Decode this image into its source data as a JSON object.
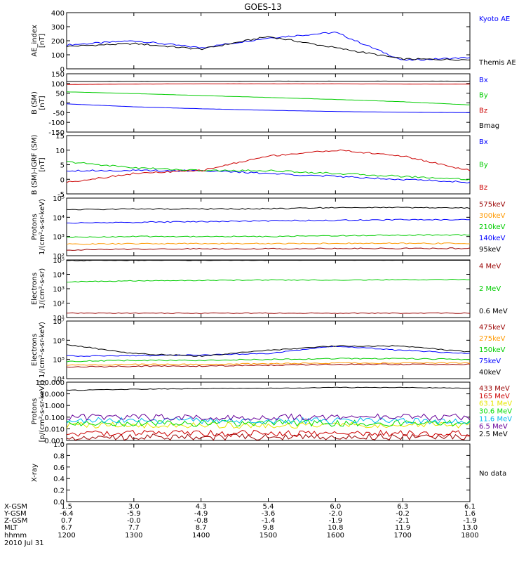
{
  "title": "GOES-13",
  "date": "2010 Jul 31",
  "colors": {
    "black": "#000000",
    "blue": "#0000ff",
    "green": "#00cc00",
    "red": "#cc0000",
    "darkred": "#990000",
    "orange": "#ff9900",
    "yellow": "#e6e600",
    "cyan": "#00bbee",
    "purple": "#660099",
    "lime": "#00dd00"
  },
  "panels": [
    {
      "id": "ae",
      "ylabel": [
        "AE_index",
        "[nT]"
      ],
      "yticks": [
        "400",
        "300",
        "200",
        "100",
        "0"
      ],
      "legend": [
        {
          "text": "Kyoto AE",
          "color": "#0000ff"
        },
        {
          "text": "Themis AE",
          "color": "#000000"
        }
      ]
    },
    {
      "id": "bsm",
      "ylabel": [
        "B (SM)",
        "[nT]"
      ],
      "yticks": [
        "150",
        "100",
        "50",
        "0",
        "-50",
        "-100",
        "-150"
      ],
      "legend": [
        {
          "text": "Bx",
          "color": "#0000ff"
        },
        {
          "text": "By",
          "color": "#00cc00"
        },
        {
          "text": "Bz",
          "color": "#cc0000"
        },
        {
          "text": "Bmag",
          "color": "#000000"
        }
      ]
    },
    {
      "id": "bigrf",
      "ylabel": [
        "B (SM)-IGRF (SM)",
        "[nT]"
      ],
      "yticks": [
        "15",
        "10",
        "5",
        "0",
        "-5"
      ],
      "legend": [
        {
          "text": "Bx",
          "color": "#0000ff"
        },
        {
          "text": "By",
          "color": "#00cc00"
        },
        {
          "text": "Bz",
          "color": "#cc0000"
        }
      ]
    },
    {
      "id": "protons1",
      "ylabel": [
        "Protons",
        "1/(cm²-s-sr-keV)"
      ],
      "yticks": [
        "10⁵",
        "10⁴",
        "10³",
        "10²"
      ],
      "legend": [
        {
          "text": "575keV",
          "color": "#990000"
        },
        {
          "text": "300keV",
          "color": "#ff9900"
        },
        {
          "text": "210keV",
          "color": "#00cc00"
        },
        {
          "text": "140keV",
          "color": "#0000ff"
        },
        {
          "text": "95keV",
          "color": "#000000"
        }
      ]
    },
    {
      "id": "electrons1",
      "ylabel": [
        "Electrons",
        "1/(cm²-s-sr)"
      ],
      "yticks": [
        "10⁵",
        "10⁴",
        "10³",
        "10²",
        "10¹"
      ],
      "legend": [
        {
          "text": "4 MeV",
          "color": "#990000"
        },
        {
          "text": "2 MeV",
          "color": "#00cc00"
        },
        {
          "text": "0.6 MeV",
          "color": "#000000"
        }
      ]
    },
    {
      "id": "electrons2",
      "ylabel": [
        "Electrons",
        "1/(cm²-s-sr-keV)"
      ],
      "yticks": [
        "10⁷",
        "10⁶",
        "10⁵",
        "10⁴"
      ],
      "legend": [
        {
          "text": "475keV",
          "color": "#990000"
        },
        {
          "text": "275keV",
          "color": "#ff9900"
        },
        {
          "text": "150keV",
          "color": "#00cc00"
        },
        {
          "text": "75keV",
          "color": "#0000ff"
        },
        {
          "text": "40keV",
          "color": "#000000"
        }
      ]
    },
    {
      "id": "protons2",
      "ylabel": [
        "Protons",
        "[p/(cm²-s-sr-keV)]"
      ],
      "yticks": [
        "100.000",
        "10.000",
        "1.000",
        "0.100",
        "0.010",
        "0.001"
      ],
      "legend": [
        {
          "text": "433 MeV",
          "color": "#990000"
        },
        {
          "text": "165 MeV",
          "color": "#cc0000"
        },
        {
          "text": "63.1 MeV",
          "color": "#e6e600"
        },
        {
          "text": "30.6 MeV",
          "color": "#00dd00"
        },
        {
          "text": "11.6 MeV",
          "color": "#00bbee"
        },
        {
          "text": "6.5 MeV",
          "color": "#660099"
        },
        {
          "text": "2.5 MeV",
          "color": "#000000"
        }
      ]
    },
    {
      "id": "xray",
      "ylabel": [
        "X-ray",
        ""
      ],
      "yticks": [
        "1.0",
        "0.8",
        "0.6",
        "0.4",
        "0.2",
        "0.0"
      ],
      "legend": [
        {
          "text": "No data",
          "color": "#000000"
        }
      ]
    }
  ],
  "footer": {
    "rows": [
      {
        "label": "X-GSM",
        "values": [
          "1.5",
          "3.0",
          "4.3",
          "5.4",
          "6.0",
          "6.3",
          "6.1"
        ]
      },
      {
        "label": "Y-GSM",
        "values": [
          "-6.4",
          "-5.9",
          "-4.9",
          "-3.6",
          "-2.0",
          "-0.2",
          "1.6"
        ]
      },
      {
        "label": "Z-GSM",
        "values": [
          "0.7",
          "-0.0",
          "-0.8",
          "-1.4",
          "-1.9",
          "-2.1",
          "-1.9"
        ]
      },
      {
        "label": "MLT",
        "values": [
          "6.7",
          "7.7",
          "8.7",
          "9.8",
          "10.8",
          "11.9",
          "13.0"
        ]
      },
      {
        "label": "hhmm",
        "values": [
          "1200",
          "1300",
          "1400",
          "1500",
          "1600",
          "1700",
          "1800"
        ]
      }
    ]
  },
  "chart_data": [
    {
      "type": "line",
      "title": "GOES-13",
      "ylabel": "AE_index [nT]",
      "ylim": [
        0,
        400
      ],
      "x": [
        "1200",
        "1300",
        "1400",
        "1500",
        "1600",
        "1700",
        "1800"
      ],
      "series": [
        {
          "name": "Kyoto AE",
          "color": "#0000ff",
          "values": [
            170,
            200,
            150,
            220,
            260,
            60,
            80
          ]
        },
        {
          "name": "Themis AE",
          "color": "#000000",
          "values": [
            160,
            180,
            140,
            230,
            150,
            70,
            65
          ]
        }
      ]
    },
    {
      "type": "line",
      "ylabel": "B (SM) [nT]",
      "ylim": [
        -150,
        150
      ],
      "x": [
        "1200",
        "1300",
        "1400",
        "1500",
        "1600",
        "1700",
        "1800"
      ],
      "series": [
        {
          "name": "Bx",
          "color": "#0000ff",
          "values": [
            -5,
            -20,
            -30,
            -38,
            -44,
            -48,
            -50
          ]
        },
        {
          "name": "By",
          "color": "#00cc00",
          "values": [
            57,
            48,
            38,
            28,
            18,
            6,
            -10
          ]
        },
        {
          "name": "Bz",
          "color": "#cc0000",
          "values": [
            95,
            97,
            98,
            98,
            98,
            97,
            97
          ]
        },
        {
          "name": "Bmag",
          "color": "#000000",
          "values": [
            110,
            111,
            111,
            112,
            112,
            112,
            112
          ]
        }
      ]
    },
    {
      "type": "line",
      "ylabel": "B (SM)-IGRF (SM) [nT]",
      "ylim": [
        -5,
        15
      ],
      "x": [
        "1200",
        "1300",
        "1400",
        "1500",
        "1600",
        "1700",
        "1800"
      ],
      "series": [
        {
          "name": "Bx",
          "color": "#0000ff",
          "values": [
            3,
            3,
            3,
            2,
            1,
            0,
            -1
          ]
        },
        {
          "name": "By",
          "color": "#00cc00",
          "values": [
            6,
            4,
            3,
            3,
            2,
            1,
            0
          ]
        },
        {
          "name": "Bz",
          "color": "#cc0000",
          "values": [
            -1,
            2,
            3,
            8,
            10,
            8,
            3
          ]
        }
      ]
    },
    {
      "type": "line",
      "ylabel": "Protons 1/(cm²-s-sr-keV)",
      "ylim": [
        100,
        100000
      ],
      "log": true,
      "x": [
        "1200",
        "1300",
        "1400",
        "1500",
        "1600",
        "1700",
        "1800"
      ],
      "series": [
        {
          "name": "575keV",
          "color": "#990000",
          "values": [
            200,
            220,
            230,
            230,
            240,
            240,
            240
          ]
        },
        {
          "name": "300keV",
          "color": "#ff9900",
          "values": [
            400,
            420,
            430,
            430,
            440,
            440,
            440
          ]
        },
        {
          "name": "210keV",
          "color": "#00cc00",
          "values": [
            900,
            1000,
            1000,
            1000,
            1100,
            1200,
            1200
          ]
        },
        {
          "name": "140keV",
          "color": "#0000ff",
          "values": [
            5000,
            5500,
            6000,
            6500,
            7000,
            7500,
            7500
          ]
        },
        {
          "name": "95keV",
          "color": "#000000",
          "values": [
            25000,
            27000,
            27000,
            28000,
            32000,
            32000,
            30000
          ]
        }
      ]
    },
    {
      "type": "line",
      "ylabel": "Electrons 1/(cm²-s-sr)",
      "ylim": [
        10,
        100000
      ],
      "log": true,
      "x": [
        "1200",
        "1300",
        "1400",
        "1500",
        "1600",
        "1700",
        "1800"
      ],
      "series": [
        {
          "name": "4 MeV",
          "color": "#990000",
          "values": [
            20,
            20,
            20,
            20,
            20,
            20,
            20
          ]
        },
        {
          "name": "2 MeV",
          "color": "#00cc00",
          "values": [
            3000,
            3500,
            3800,
            4000,
            4000,
            4200,
            4300
          ]
        },
        {
          "name": "0.6 MeV",
          "color": "#000000",
          "values": [
            90000,
            95000,
            95000,
            98000,
            100000,
            100000,
            100000
          ]
        }
      ]
    },
    {
      "type": "line",
      "ylabel": "Electrons 1/(cm²-s-sr-keV)",
      "ylim": [
        10000,
        10000000
      ],
      "log": true,
      "x": [
        "1200",
        "1300",
        "1400",
        "1500",
        "1600",
        "1700",
        "1800"
      ],
      "series": [
        {
          "name": "475keV",
          "color": "#990000",
          "values": [
            40000,
            45000,
            45000,
            50000,
            55000,
            55000,
            55000
          ]
        },
        {
          "name": "275keV",
          "color": "#ff9900",
          "values": [
            50000,
            55000,
            55000,
            60000,
            65000,
            65000,
            65000
          ]
        },
        {
          "name": "150keV",
          "color": "#00cc00",
          "values": [
            80000,
            90000,
            90000,
            100000,
            110000,
            110000,
            100000
          ]
        },
        {
          "name": "75keV",
          "color": "#0000ff",
          "values": [
            150000,
            160000,
            170000,
            200000,
            500000,
            300000,
            200000
          ]
        },
        {
          "name": "40keV",
          "color": "#000000",
          "values": [
            600000,
            200000,
            150000,
            300000,
            500000,
            500000,
            250000
          ]
        }
      ]
    },
    {
      "type": "line",
      "ylabel": "Protons [p/(cm²-s-sr-keV)]",
      "ylim": [
        0.001,
        100
      ],
      "log": true,
      "x": [
        "1200",
        "1300",
        "1400",
        "1500",
        "1600",
        "1700",
        "1800"
      ],
      "series": [
        {
          "name": "433 MeV",
          "color": "#990000",
          "values": [
            0.002,
            0.002,
            0.002,
            0.002,
            0.002,
            0.002,
            0.002
          ]
        },
        {
          "name": "165 MeV",
          "color": "#cc0000",
          "values": [
            0.004,
            0.004,
            0.004,
            0.004,
            0.004,
            0.004,
            0.004
          ]
        },
        {
          "name": "63.1 MeV",
          "color": "#e6e600",
          "values": [
            0.02,
            0.02,
            0.02,
            0.02,
            0.02,
            0.02,
            0.02
          ]
        },
        {
          "name": "30.6 MeV",
          "color": "#00dd00",
          "values": [
            0.03,
            0.03,
            0.03,
            0.03,
            0.03,
            0.03,
            0.03
          ]
        },
        {
          "name": "11.6 MeV",
          "color": "#00bbee",
          "values": [
            0.05,
            0.05,
            0.05,
            0.05,
            0.05,
            0.05,
            0.05
          ]
        },
        {
          "name": "6.5 MeV",
          "color": "#660099",
          "values": [
            0.1,
            0.1,
            0.1,
            0.1,
            0.1,
            0.1,
            0.1
          ]
        },
        {
          "name": "2.5 MeV",
          "color": "#000000",
          "values": [
            20,
            25,
            28,
            30,
            35,
            35,
            30
          ]
        }
      ]
    },
    {
      "type": "line",
      "ylabel": "X-ray",
      "ylim": [
        0,
        1
      ],
      "x": [
        "1200",
        "1300",
        "1400",
        "1500",
        "1600",
        "1700",
        "1800"
      ],
      "series": []
    }
  ]
}
